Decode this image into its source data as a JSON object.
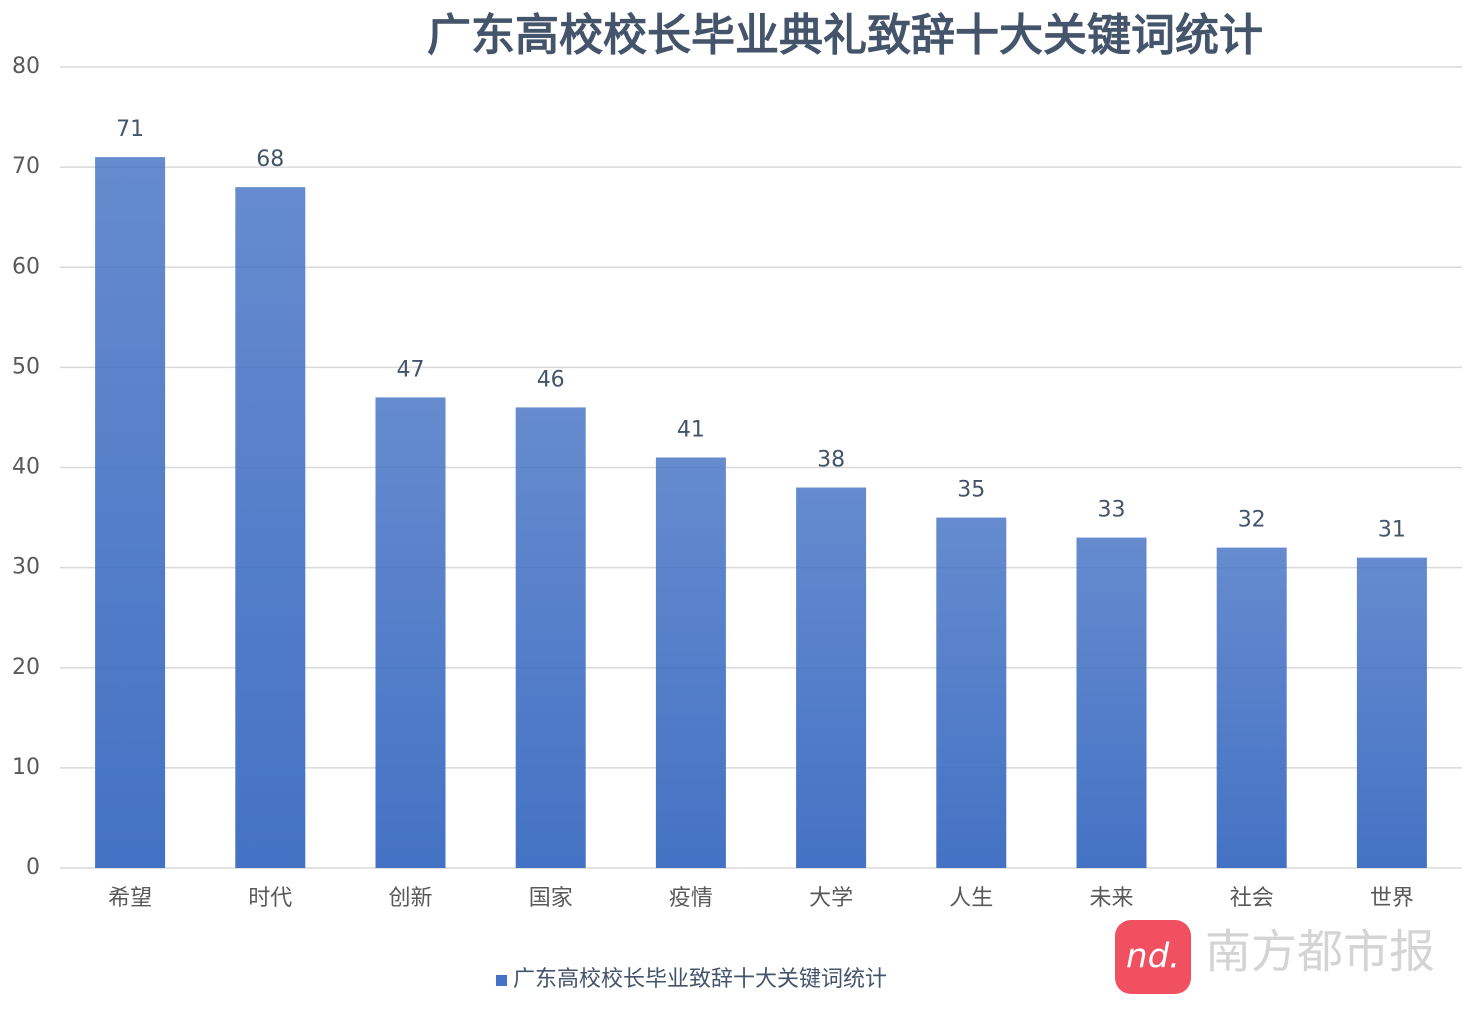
{
  "chart_data": {
    "type": "bar",
    "title": "广东高校校长毕业典礼致辞十大关键词统计",
    "categories": [
      "希望",
      "时代",
      "创新",
      "国家",
      "疫情",
      "大学",
      "人生",
      "未来",
      "社会",
      "世界"
    ],
    "series": [
      {
        "name": "广东高校校长毕业致辞十大关键词统计",
        "color": "#4472c4",
        "values": [
          71,
          68,
          47,
          46,
          41,
          38,
          35,
          33,
          32,
          31
        ]
      }
    ],
    "ylim": [
      0,
      80
    ],
    "yticks": [
      0,
      10,
      20,
      30,
      40,
      50,
      60,
      70,
      80
    ],
    "grid": true,
    "legend": "bottom",
    "watermark_logo": "nd.",
    "watermark": "南方都市报"
  }
}
